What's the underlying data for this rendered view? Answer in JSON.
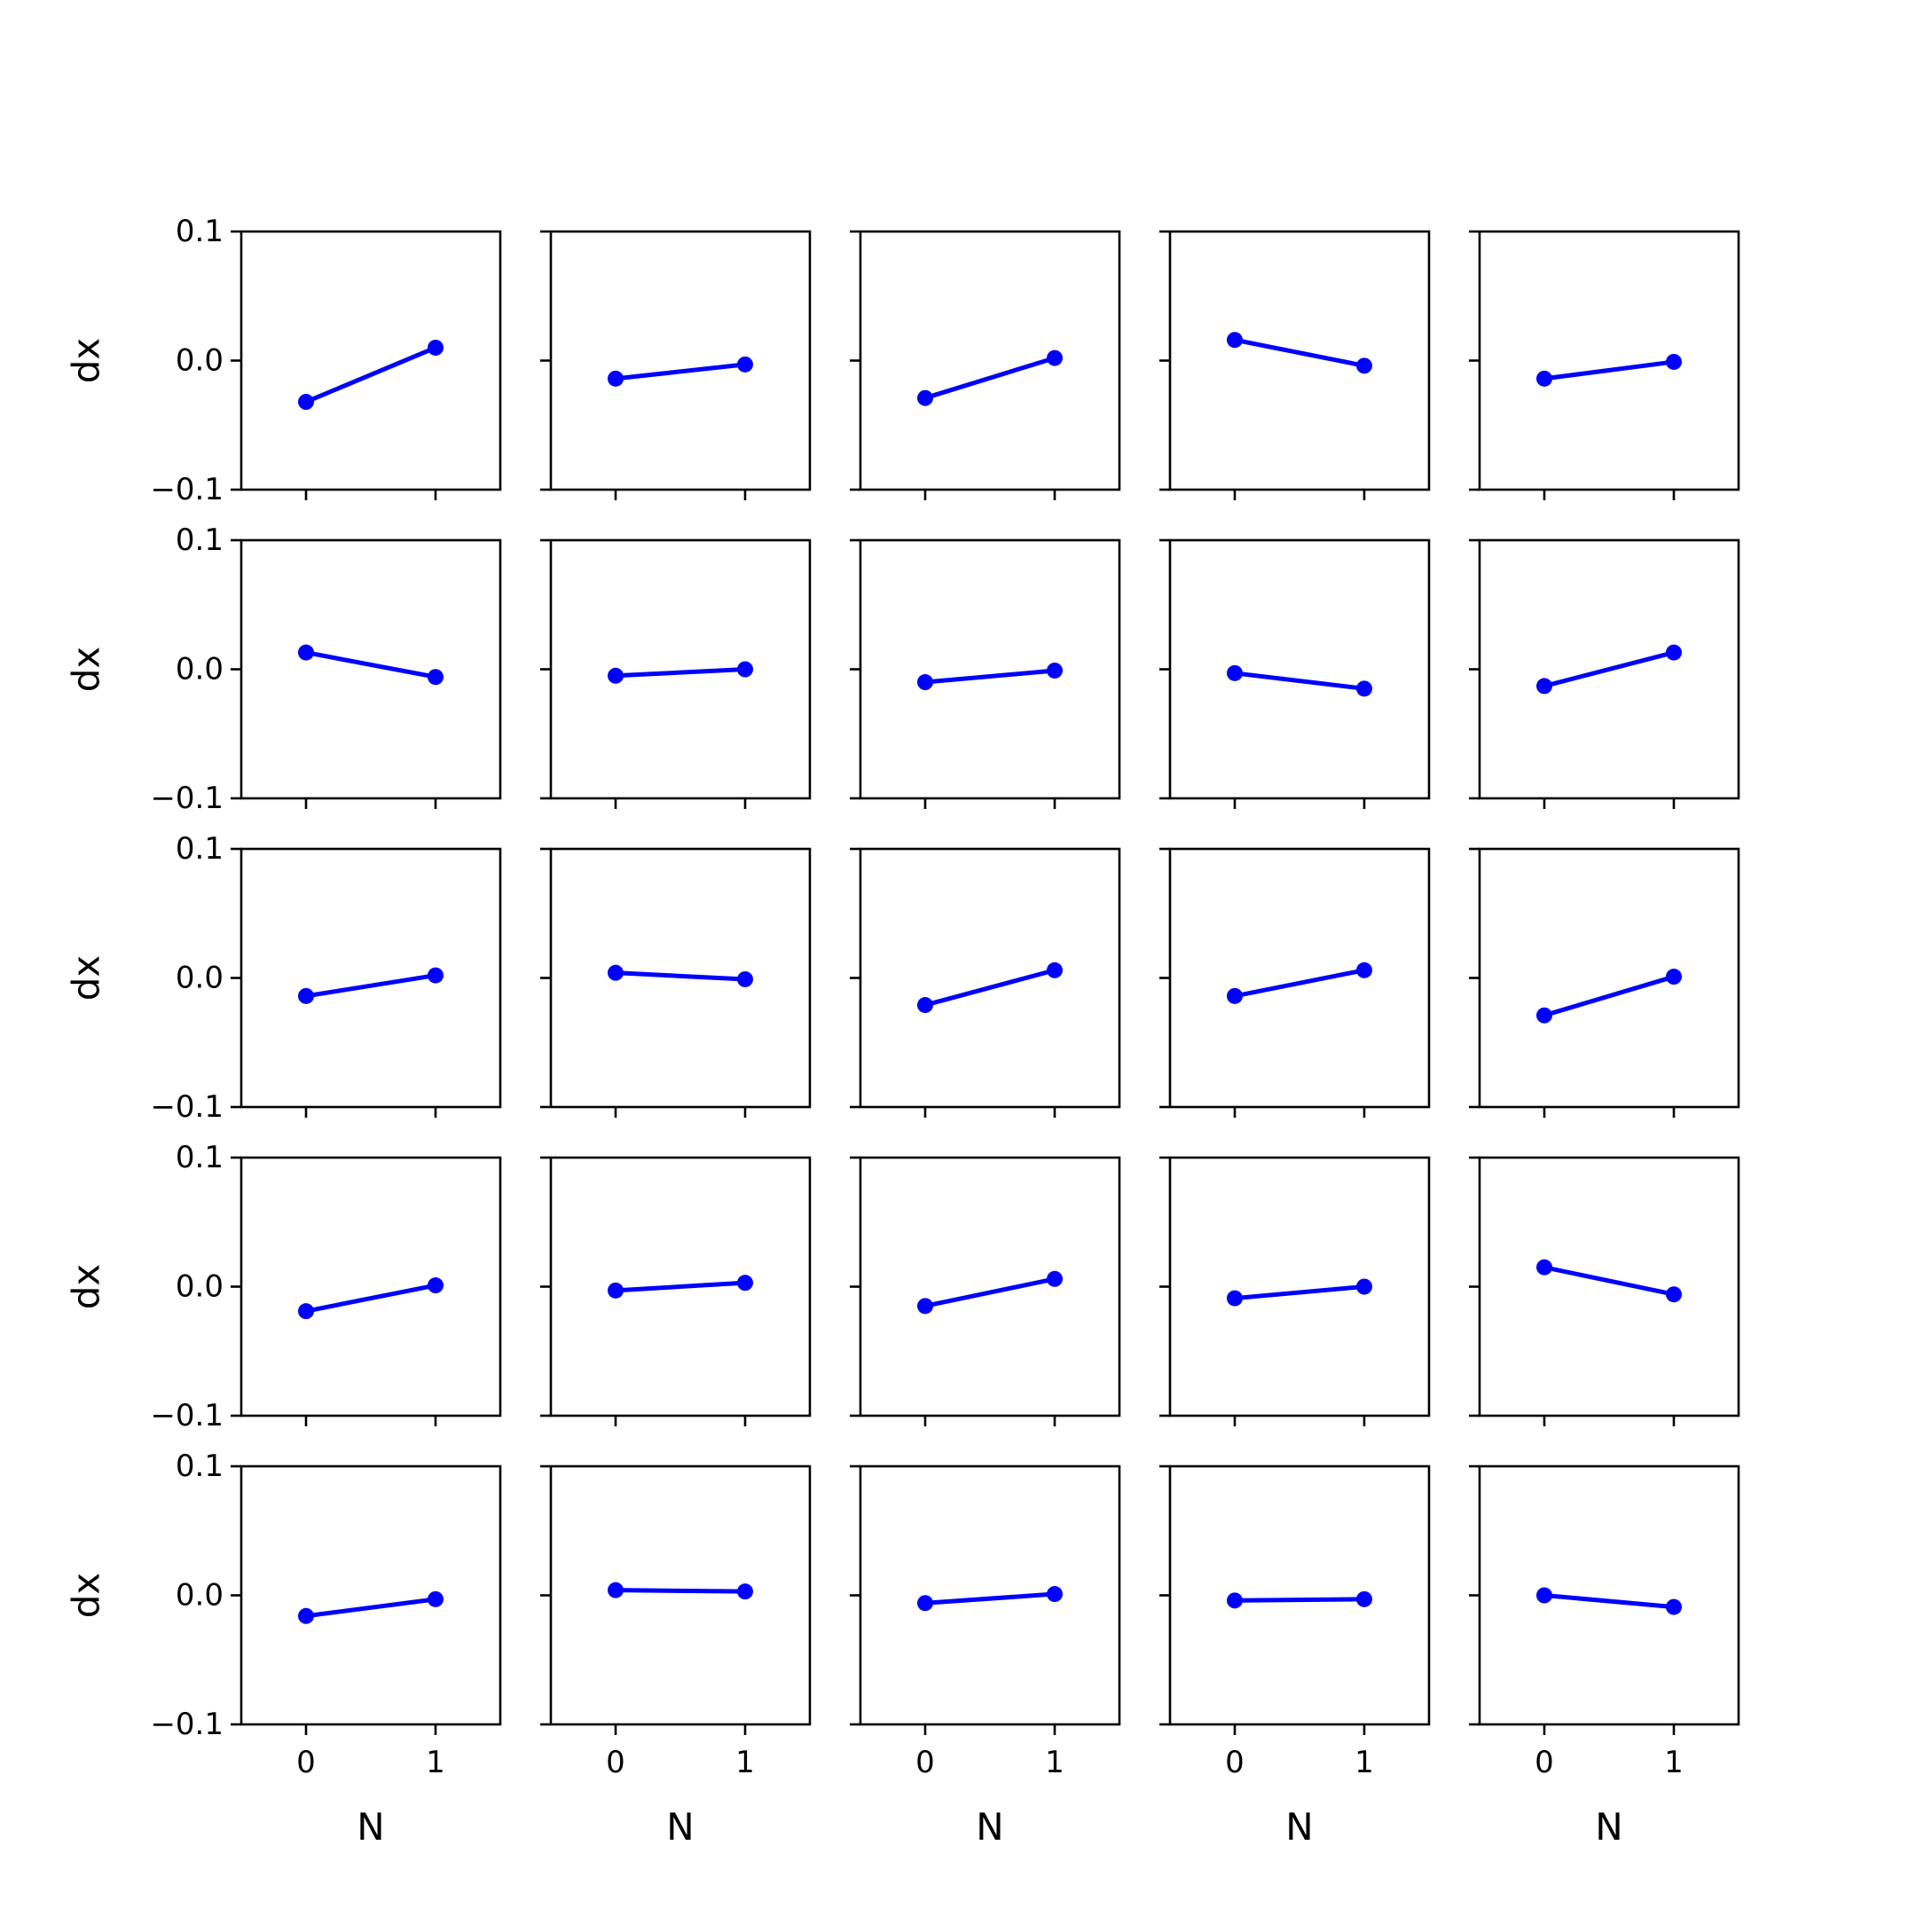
{
  "figure": {
    "background": "#ffffff",
    "line_color": "#0000ff",
    "axes_color": "#000000"
  },
  "chart_data": {
    "type": "line",
    "layout": "grid",
    "rows": 5,
    "cols": 5,
    "xlabel": "N",
    "ylabel": "dx",
    "x": [
      0,
      1
    ],
    "xlim": [
      -0.5,
      1.5
    ],
    "ylim": [
      -0.1,
      0.1
    ],
    "xticks": [
      "0",
      "1"
    ],
    "yticks": [
      "−0.1",
      "0.0",
      "0.1"
    ],
    "ytick_values": [
      -0.1,
      0.0,
      0.1
    ],
    "marker": "circle",
    "grid": false,
    "panels": [
      [
        [
          -0.032,
          0.01
        ],
        [
          -0.014,
          -0.003
        ],
        [
          -0.029,
          0.002
        ],
        [
          0.016,
          -0.004
        ],
        [
          -0.014,
          -0.001
        ]
      ],
      [
        [
          0.013,
          -0.006
        ],
        [
          -0.005,
          0.0
        ],
        [
          -0.01,
          -0.001
        ],
        [
          -0.003,
          -0.015
        ],
        [
          -0.013,
          0.013
        ]
      ],
      [
        [
          -0.014,
          0.002
        ],
        [
          0.004,
          -0.001
        ],
        [
          -0.021,
          0.006
        ],
        [
          -0.014,
          0.006
        ],
        [
          -0.029,
          0.001
        ]
      ],
      [
        [
          -0.019,
          0.001
        ],
        [
          -0.003,
          0.003
        ],
        [
          -0.015,
          0.006
        ],
        [
          -0.009,
          0.0
        ],
        [
          0.015,
          -0.006
        ]
      ],
      [
        [
          -0.016,
          -0.003
        ],
        [
          0.004,
          0.003
        ],
        [
          -0.006,
          0.001
        ],
        [
          -0.004,
          -0.003
        ],
        [
          0.0,
          -0.009
        ]
      ]
    ]
  }
}
